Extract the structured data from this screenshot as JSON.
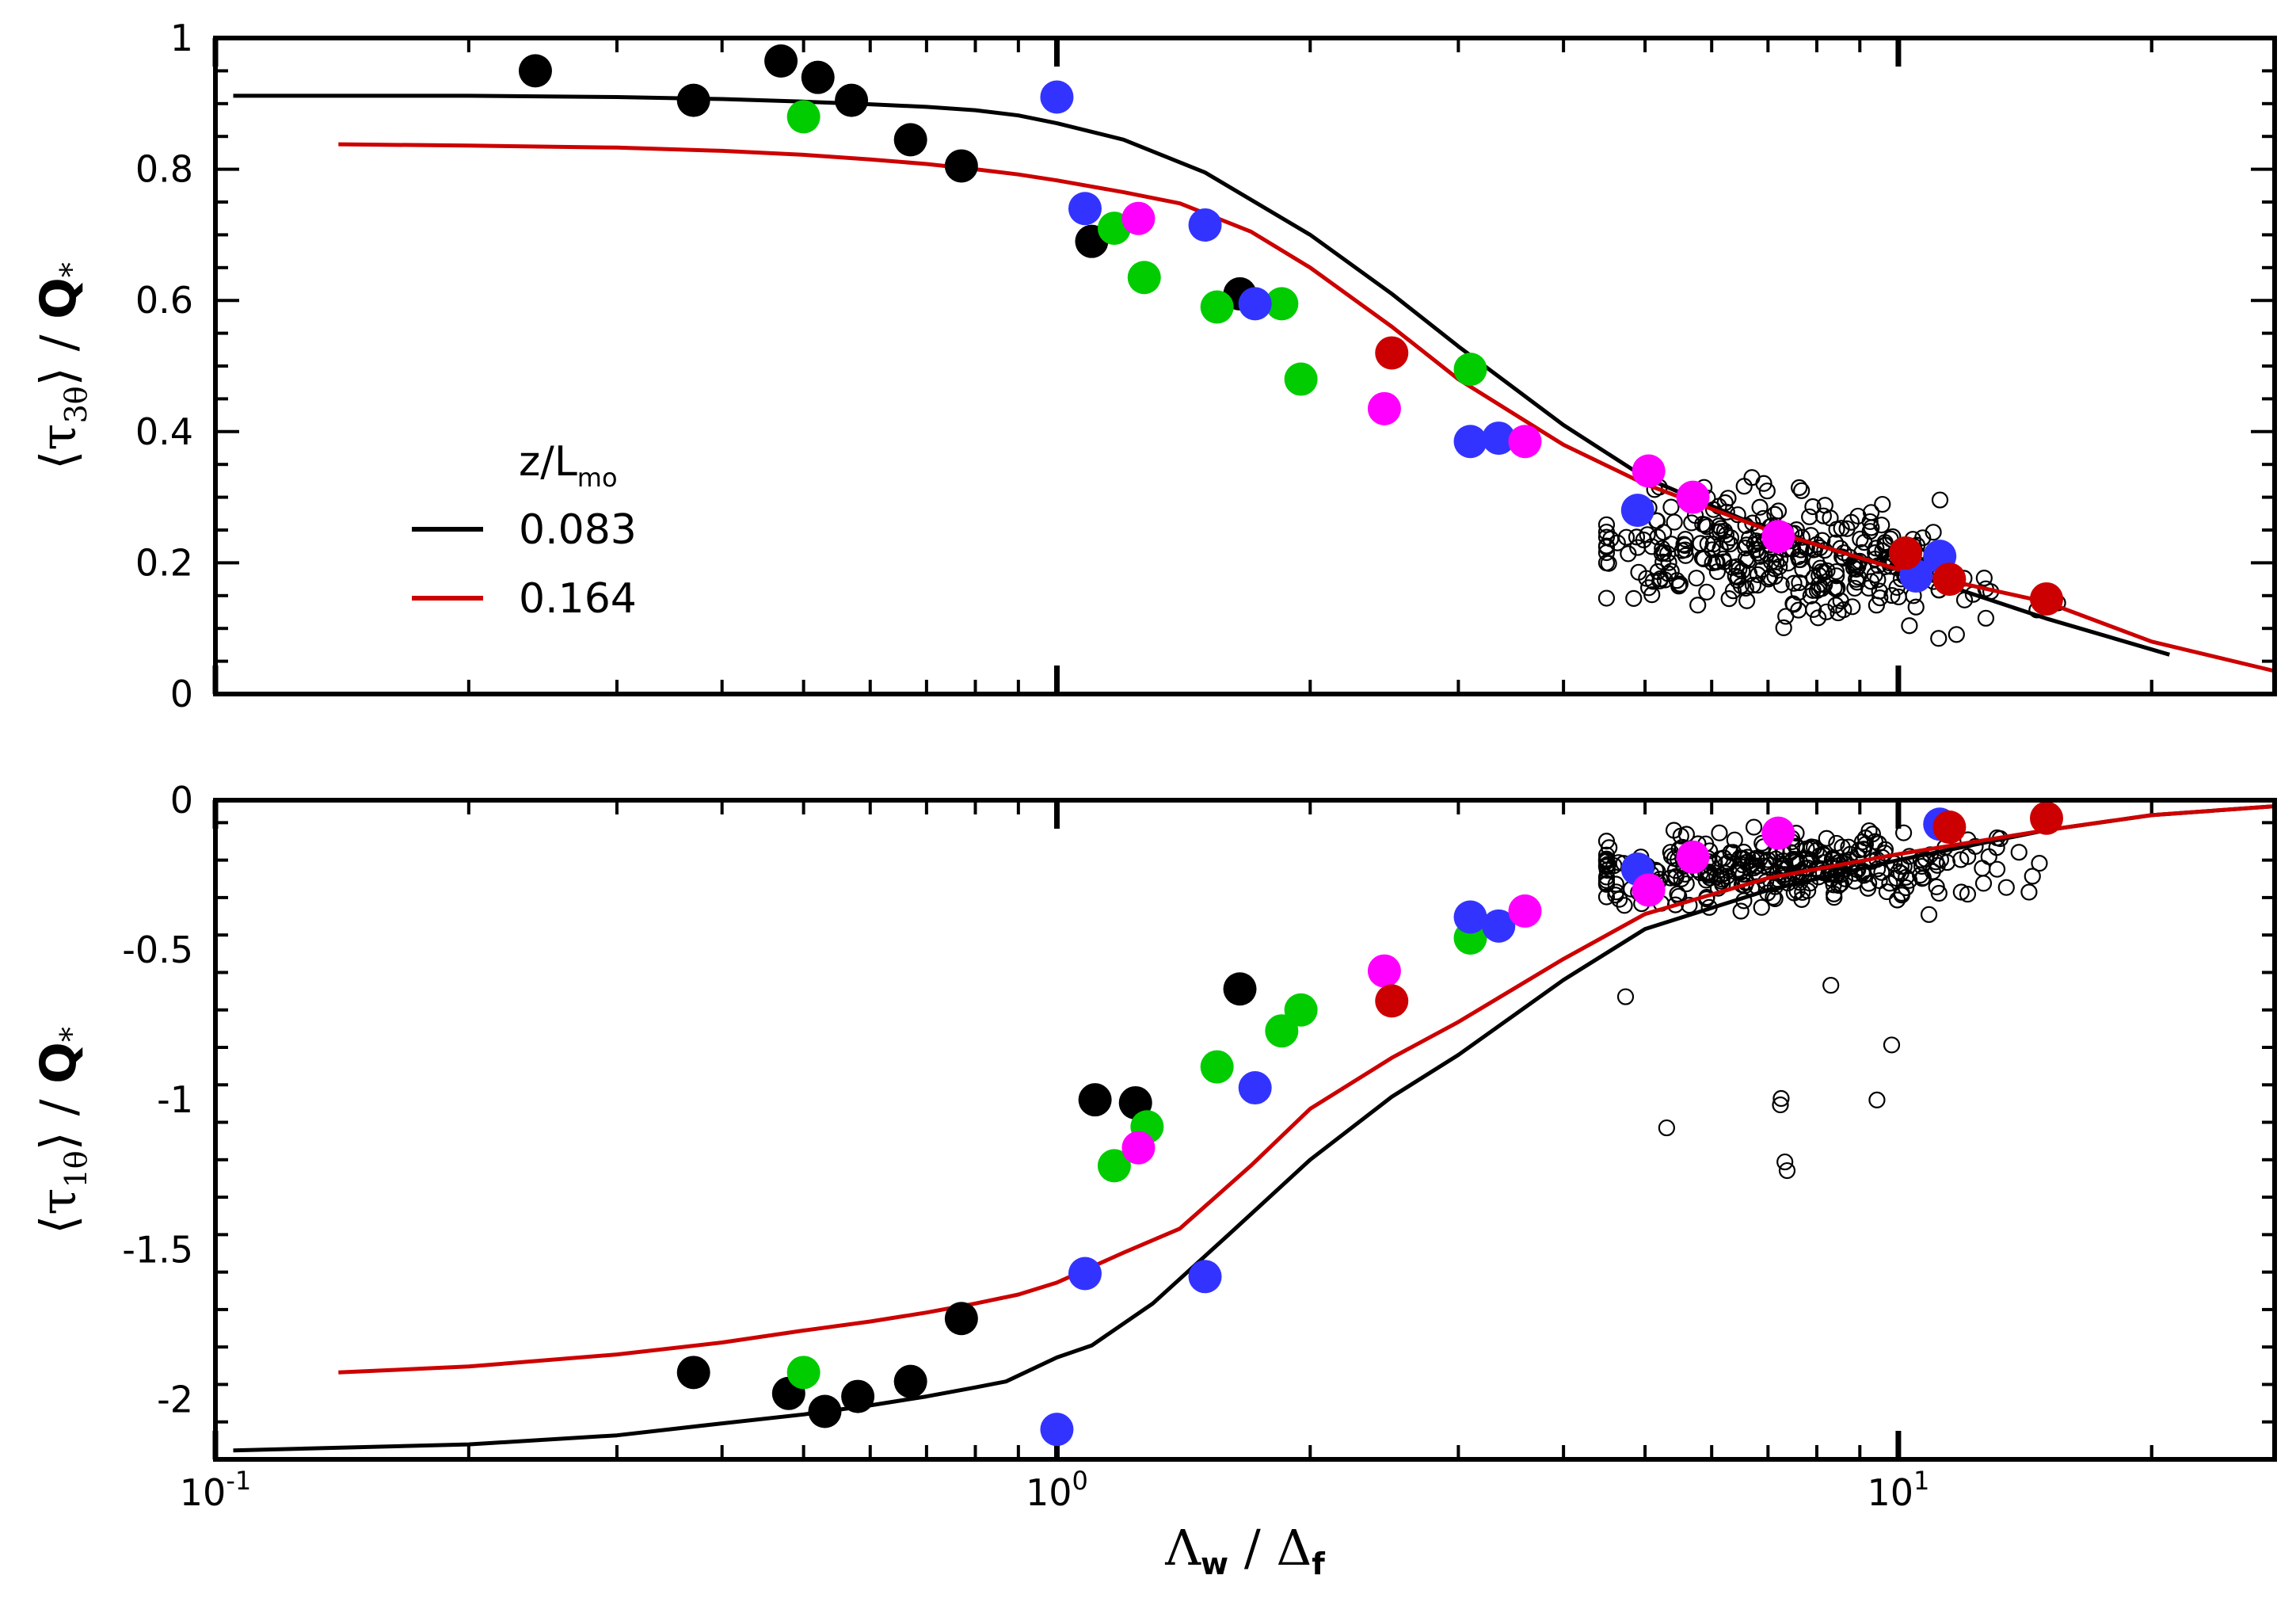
{
  "chart_data": [
    {
      "type": "scatter",
      "panel": "top",
      "ylabel": "⟨τ3θ⟩ / Q*",
      "ylim": [
        0,
        1
      ],
      "yticks": [
        0,
        0.2,
        0.4,
        0.6,
        0.8,
        1
      ],
      "ytick_labels": [
        "0",
        "0.2",
        "0.4",
        "0.6",
        "0.8",
        "1"
      ],
      "xscale": "log",
      "xlim": [
        0.1,
        28
      ],
      "xlabel_parts": {
        "lambda": "Λ",
        "w": "w",
        "slash": " / ",
        "delta": "Δ",
        "f": "f"
      },
      "ylabel_parts": {
        "open": "⟨τ",
        "sub": "3θ",
        "close": "⟩ / ",
        "q": "Q",
        "star": "*"
      },
      "legend": {
        "title": "z/L",
        "title_sub": "mo",
        "entries": [
          {
            "label": "0.083",
            "color": "#000000"
          },
          {
            "label": "0.164",
            "color": "#cc0000"
          }
        ]
      },
      "lines": [
        {
          "name": "0.083",
          "color": "#000000",
          "x": [
            0.105,
            0.2,
            0.3,
            0.4,
            0.5,
            0.6,
            0.7,
            0.8,
            0.9,
            1.0,
            1.2,
            1.5,
            2.0,
            2.5,
            3.0,
            4.0,
            5.0,
            7.0,
            10.0,
            15.0,
            21.0
          ],
          "y": [
            0.912,
            0.912,
            0.91,
            0.907,
            0.903,
            0.899,
            0.895,
            0.89,
            0.882,
            0.87,
            0.845,
            0.795,
            0.7,
            0.61,
            0.53,
            0.41,
            0.33,
            0.25,
            0.19,
            0.115,
            0.06
          ]
        },
        {
          "name": "0.164",
          "color": "#cc0000",
          "x": [
            0.14,
            0.2,
            0.3,
            0.4,
            0.5,
            0.6,
            0.7,
            0.8,
            0.9,
            1.0,
            1.2,
            1.4,
            1.7,
            2.0,
            2.5,
            3.0,
            4.0,
            5.0,
            7.0,
            10.0,
            15.0,
            20.0,
            28.0
          ],
          "y": [
            0.838,
            0.836,
            0.833,
            0.828,
            0.822,
            0.815,
            0.808,
            0.8,
            0.792,
            0.783,
            0.765,
            0.748,
            0.705,
            0.65,
            0.56,
            0.48,
            0.38,
            0.32,
            0.25,
            0.19,
            0.14,
            0.08,
            0.035
          ]
        }
      ],
      "filled_points": [
        {
          "color": "#000000",
          "x": [
            0.24,
            0.37,
            0.47,
            0.52,
            0.57,
            0.67,
            0.77,
            1.1,
            1.65
          ],
          "y": [
            0.95,
            0.905,
            0.965,
            0.94,
            0.905,
            0.845,
            0.805,
            0.69,
            0.61
          ]
        },
        {
          "color": "#00cc00",
          "x": [
            0.5,
            1.17,
            1.27,
            1.55,
            1.85,
            1.95,
            3.1
          ],
          "y": [
            0.88,
            0.71,
            0.635,
            0.59,
            0.595,
            0.48,
            0.495
          ]
        },
        {
          "color": "#3333ff",
          "x": [
            1.0,
            1.08,
            1.5,
            1.72,
            3.1,
            3.35,
            4.9,
            10.5,
            11.2
          ],
          "y": [
            0.91,
            0.74,
            0.715,
            0.595,
            0.385,
            0.39,
            0.28,
            0.18,
            0.21
          ]
        },
        {
          "color": "#ff00ff",
          "x": [
            1.25,
            2.45,
            3.6,
            5.05,
            5.7,
            7.2
          ],
          "y": [
            0.725,
            0.435,
            0.385,
            0.34,
            0.3,
            0.24
          ]
        },
        {
          "color": "#cc0000",
          "x": [
            2.5,
            10.2,
            11.5,
            15.0
          ],
          "y": [
            0.52,
            0.215,
            0.175,
            0.145
          ]
        }
      ],
      "open_points_region": {
        "x_range": [
          4.5,
          18
        ],
        "y_range": [
          0.03,
          0.51
        ],
        "count": 320
      }
    },
    {
      "type": "scatter",
      "panel": "bottom",
      "ylabel": "⟨τ1θ⟩ / Q*",
      "ylim": [
        -2.2,
        0
      ],
      "yticks": [
        -2,
        -1.5,
        -1,
        -0.5,
        0
      ],
      "ytick_labels": [
        "-2",
        "-1.5",
        "-1",
        "-0.5",
        "0"
      ],
      "xscale": "log",
      "xlim": [
        0.1,
        28
      ],
      "xticks": [
        0.1,
        1,
        10
      ],
      "xlabel": "Λw / Δf",
      "ylabel_parts": {
        "open": "⟨τ",
        "sub": "1θ",
        "close": "⟩ / ",
        "q": "Q",
        "star": "*"
      },
      "lines": [
        {
          "name": "0.083",
          "color": "#000000",
          "x": [
            0.105,
            0.2,
            0.3,
            0.4,
            0.5,
            0.6,
            0.7,
            0.8,
            0.87,
            1.0,
            1.1,
            1.3,
            1.6,
            2.0,
            2.5,
            3.0,
            4.0,
            5.0,
            7.0,
            10.0,
            15.0,
            20.0,
            28.0
          ],
          "y": [
            -2.17,
            -2.15,
            -2.12,
            -2.08,
            -2.05,
            -2.02,
            -1.99,
            -1.96,
            -1.94,
            -1.86,
            -1.82,
            -1.68,
            -1.45,
            -1.2,
            -0.99,
            -0.85,
            -0.6,
            -0.43,
            -0.3,
            -0.2,
            -0.1,
            -0.05,
            -0.02
          ]
        },
        {
          "name": "0.164",
          "color": "#cc0000",
          "x": [
            0.14,
            0.2,
            0.3,
            0.4,
            0.5,
            0.6,
            0.7,
            0.8,
            0.9,
            1.0,
            1.2,
            1.4,
            1.7,
            2.0,
            2.5,
            3.0,
            4.0,
            5.0,
            7.0,
            10.0,
            15.0,
            20.0,
            28.0
          ],
          "y": [
            -1.91,
            -1.89,
            -1.85,
            -1.81,
            -1.77,
            -1.74,
            -1.71,
            -1.68,
            -1.65,
            -1.61,
            -1.51,
            -1.43,
            -1.22,
            -1.03,
            -0.86,
            -0.74,
            -0.53,
            -0.38,
            -0.26,
            -0.18,
            -0.1,
            -0.05,
            -0.02
          ]
        }
      ],
      "filled_points": [
        {
          "color": "#000000",
          "x": [
            0.37,
            0.48,
            0.53,
            0.58,
            0.67,
            0.77,
            1.11,
            1.24,
            1.65
          ],
          "y": [
            -1.91,
            -1.98,
            -2.04,
            -1.99,
            -1.94,
            -1.73,
            -1.0,
            -1.01,
            -0.63
          ]
        },
        {
          "color": "#00cc00",
          "x": [
            0.5,
            1.17,
            1.28,
            1.55,
            1.85,
            1.95,
            3.1
          ],
          "y": [
            -1.91,
            -1.22,
            -1.09,
            -0.89,
            -0.77,
            -0.7,
            -0.46
          ]
        },
        {
          "color": "#3333ff",
          "x": [
            1.0,
            1.08,
            1.5,
            1.72,
            3.1,
            3.35,
            4.9,
            11.2
          ],
          "y": [
            -2.1,
            -1.58,
            -1.59,
            -0.96,
            -0.39,
            -0.42,
            -0.23,
            -0.08
          ]
        },
        {
          "color": "#ff00ff",
          "x": [
            1.25,
            2.45,
            3.6,
            5.05,
            5.7,
            7.2
          ],
          "y": [
            -1.16,
            -0.57,
            -0.37,
            -0.3,
            -0.19,
            -0.11
          ]
        },
        {
          "color": "#cc0000",
          "x": [
            2.5,
            11.5,
            15.0
          ],
          "y": [
            -0.67,
            -0.09,
            -0.06
          ]
        }
      ],
      "open_points_region": {
        "x_range": [
          4.5,
          18
        ],
        "y_range": [
          -1.82,
          0
        ],
        "count": 320
      }
    }
  ],
  "x_tick_labels": [
    {
      "base": "10",
      "exp": "-1",
      "value": 0.1
    },
    {
      "base": "10",
      "exp": "0",
      "value": 1
    },
    {
      "base": "10",
      "exp": "1",
      "value": 10
    }
  ]
}
